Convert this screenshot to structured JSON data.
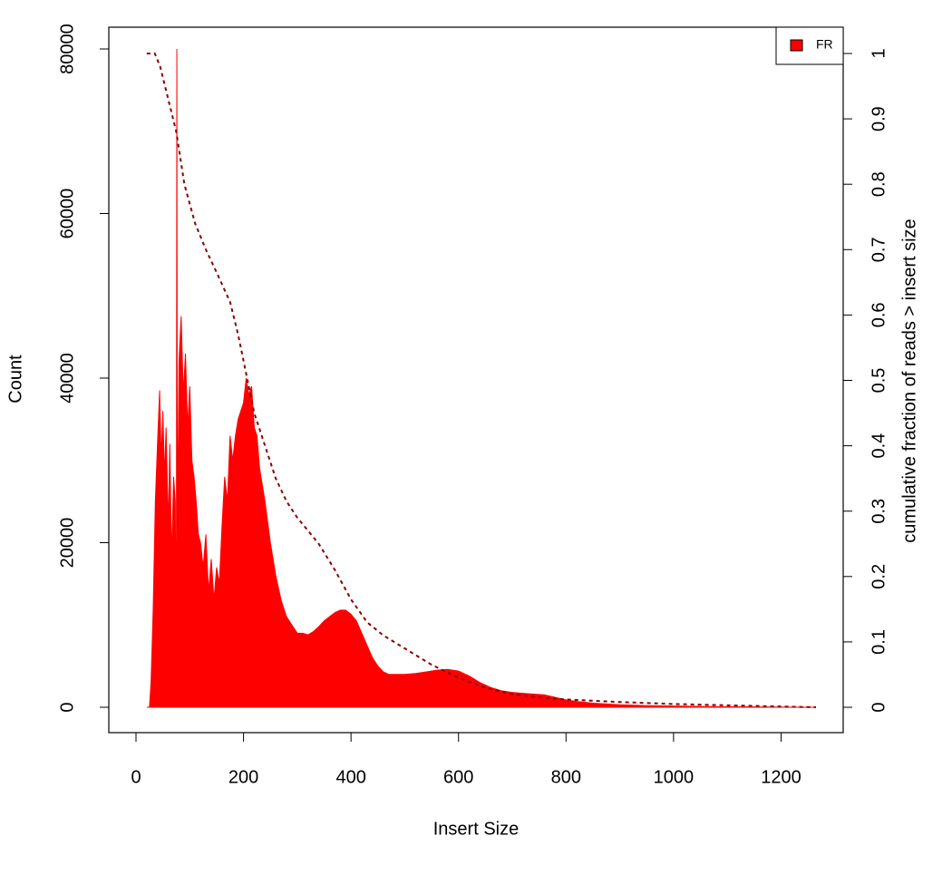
{
  "chart_data": {
    "type": "area",
    "xlabel": "Insert Size",
    "ylabel": "Count",
    "y2label": "cumulative fraction of reads > insert size",
    "xlim": [
      -50.6,
      1315.6
    ],
    "xticks": [
      0,
      200,
      400,
      600,
      800,
      1000,
      1200
    ],
    "ylim": [
      -3085,
      82645
    ],
    "yticks": [
      0,
      20000,
      40000,
      60000,
      80000
    ],
    "y2lim": [
      -0.0388,
      1.0402
    ],
    "y2ticks": [
      0,
      0.1,
      0.2,
      0.3,
      0.4,
      0.5,
      0.6,
      0.7,
      0.8,
      0.9,
      1
    ],
    "legend": "top-right",
    "series": [
      {
        "name": "FR",
        "color": "#ff0000",
        "x": [
          20,
          25,
          28,
          32,
          36,
          40,
          44,
          47,
          50,
          53,
          56,
          60,
          63,
          66,
          70,
          73,
          75,
          76,
          77,
          80,
          84,
          88,
          92,
          96,
          100,
          104,
          108,
          112,
          116,
          120,
          125,
          130,
          135,
          140,
          145,
          150,
          155,
          160,
          165,
          170,
          175,
          180,
          185,
          190,
          195,
          200,
          205,
          210,
          215,
          220,
          225,
          230,
          240,
          250,
          260,
          270,
          280,
          290,
          300,
          310,
          320,
          330,
          340,
          350,
          360,
          370,
          380,
          390,
          400,
          410,
          420,
          430,
          440,
          450,
          460,
          470,
          480,
          490,
          500,
          520,
          540,
          560,
          580,
          600,
          620,
          640,
          660,
          680,
          700,
          720,
          740,
          760,
          780,
          800,
          820,
          850,
          900,
          950,
          1000,
          1050,
          1100,
          1150,
          1200,
          1265
        ],
        "values": [
          0,
          0,
          3000,
          12000,
          25000,
          32000,
          38500,
          30000,
          36000,
          28000,
          34000,
          22000,
          32000,
          18000,
          28000,
          25000,
          5000,
          80000,
          20000,
          42000,
          47500,
          38000,
          43000,
          34000,
          39000,
          30000,
          28000,
          25000,
          21000,
          20000,
          17000,
          21000,
          14000,
          18000,
          13000,
          17000,
          15000,
          22000,
          28000,
          25000,
          33000,
          30000,
          33000,
          35000,
          36000,
          37000,
          40000,
          38000,
          39000,
          34000,
          33000,
          29000,
          25000,
          20000,
          16000,
          13000,
          11000,
          10000,
          9000,
          9000,
          8800,
          9200,
          9800,
          10500,
          11000,
          11500,
          11800,
          11800,
          11300,
          10500,
          9000,
          7500,
          6000,
          5000,
          4300,
          4000,
          4000,
          4000,
          4000,
          4100,
          4300,
          4500,
          4600,
          4400,
          3800,
          3000,
          2400,
          2000,
          1800,
          1700,
          1600,
          1500,
          1200,
          900,
          700,
          500,
          300,
          200,
          150,
          100,
          60,
          40,
          20,
          0
        ]
      },
      {
        "color": "#8b0000",
        "axis": "y2",
        "dashed": true,
        "x": [
          20,
          35,
          45,
          60,
          75,
          90,
          110,
          130,
          150,
          175,
          190,
          205,
          220,
          240,
          260,
          280,
          300,
          340,
          370,
          400,
          430,
          460,
          500,
          550,
          600,
          650,
          700,
          750,
          800,
          900,
          1000,
          1100,
          1265
        ],
        "values": [
          1,
          1,
          0.98,
          0.93,
          0.88,
          0.8,
          0.74,
          0.7,
          0.665,
          0.62,
          0.57,
          0.51,
          0.45,
          0.4,
          0.35,
          0.315,
          0.29,
          0.25,
          0.21,
          0.165,
          0.13,
          0.11,
          0.09,
          0.065,
          0.045,
          0.03,
          0.02,
          0.015,
          0.012,
          0.008,
          0.005,
          0.003,
          0
        ]
      }
    ]
  }
}
